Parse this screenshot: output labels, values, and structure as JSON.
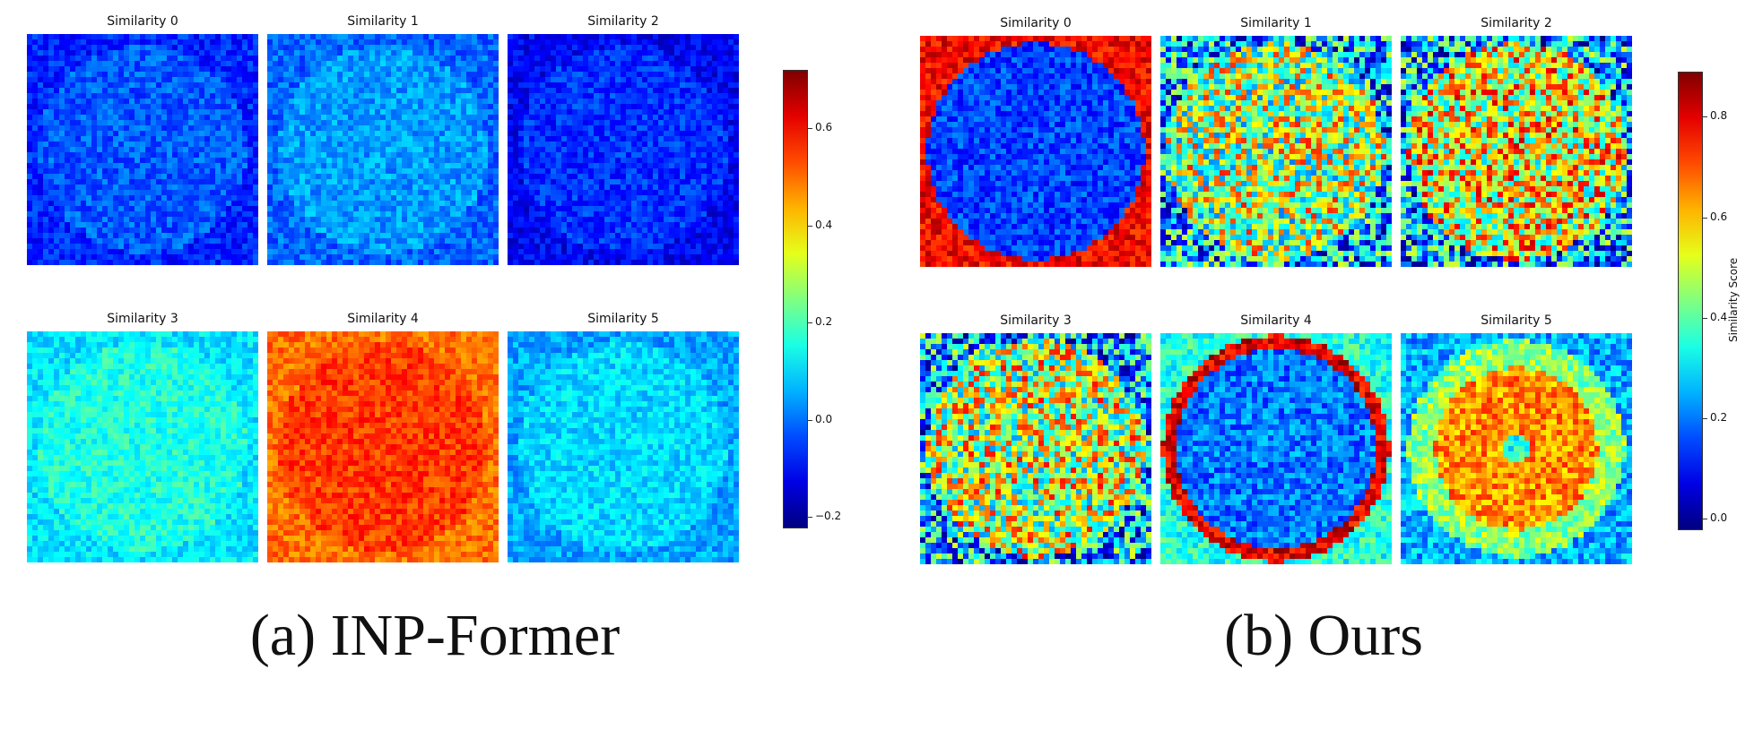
{
  "chart_data": [
    {
      "type": "heatmap",
      "caption": "(a) INP-Former",
      "panels": [
        {
          "title": "Similarity 0",
          "level": -0.02
        },
        {
          "title": "Similarity 1",
          "level": 0.04
        },
        {
          "title": "Similarity 2",
          "level": -0.06
        },
        {
          "title": "Similarity 3",
          "level": 0.16
        },
        {
          "title": "Similarity 4",
          "level": 0.55
        },
        {
          "title": "Similarity 5",
          "level": 0.1
        }
      ],
      "colorbar": {
        "min": -0.22,
        "max": 0.72,
        "ticks": [
          -0.2,
          0.0,
          0.2,
          0.4,
          0.6
        ],
        "tick_labels": [
          "−0.2",
          "0.0",
          "0.2",
          "0.4",
          "0.6"
        ],
        "label": ""
      },
      "colormap": "jet"
    },
    {
      "type": "heatmap",
      "caption": "(b) Ours",
      "panels": [
        {
          "title": "Similarity 0",
          "level": 0.2
        },
        {
          "title": "Similarity 1",
          "level": 0.48
        },
        {
          "title": "Similarity 2",
          "level": 0.55
        },
        {
          "title": "Similarity 3",
          "level": 0.5
        },
        {
          "title": "Similarity 4",
          "level": 0.35
        },
        {
          "title": "Similarity 5",
          "level": 0.55
        }
      ],
      "colorbar": {
        "min": -0.02,
        "max": 0.89,
        "ticks": [
          0.0,
          0.2,
          0.4,
          0.6,
          0.8
        ],
        "tick_labels": [
          "0.0",
          "0.2",
          "0.4",
          "0.6",
          "0.8"
        ],
        "label": "Similarity Score"
      },
      "colormap": "jet"
    }
  ]
}
